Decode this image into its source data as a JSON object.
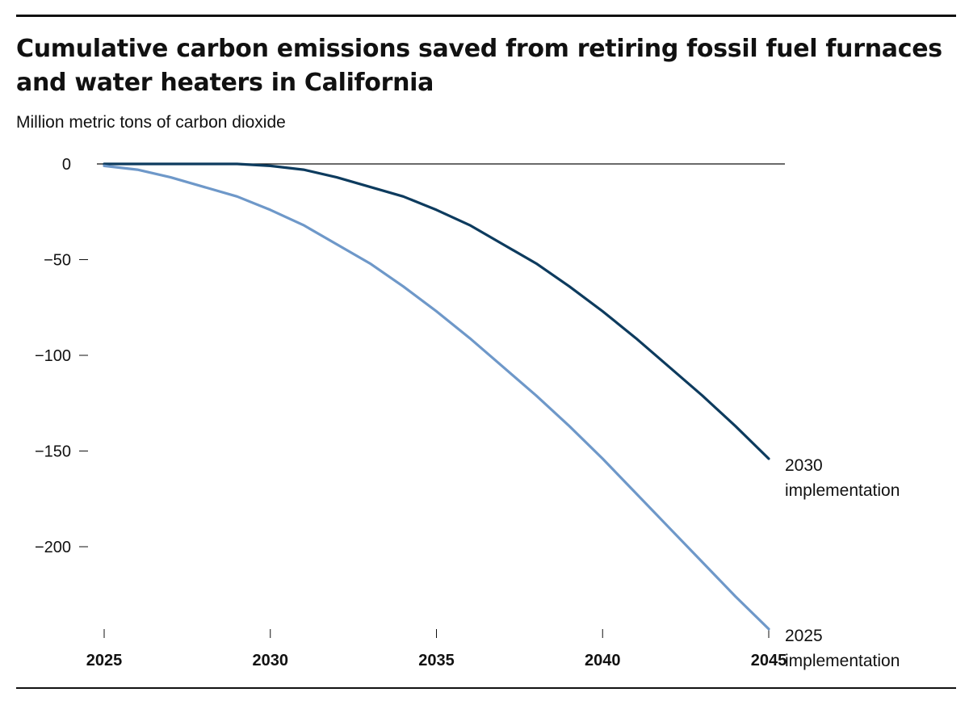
{
  "chart_data": {
    "type": "line",
    "title": "Cumulative carbon emissions saved from retiring fossil fuel furnaces and water heaters in California",
    "subtitle": "Million metric tons of carbon dioxide",
    "x": [
      2025,
      2026,
      2027,
      2028,
      2029,
      2030,
      2031,
      2032,
      2033,
      2034,
      2035,
      2036,
      2037,
      2038,
      2039,
      2040,
      2041,
      2042,
      2043,
      2044,
      2045
    ],
    "xlim": [
      2025,
      2045
    ],
    "ylim": [
      -243,
      0
    ],
    "x_ticks": [
      2025,
      2030,
      2035,
      2040,
      2045
    ],
    "x_tick_labels": [
      "2025",
      "2030",
      "2035",
      "2040",
      "2045"
    ],
    "y_ticks": [
      0,
      -50,
      -100,
      -150,
      -200
    ],
    "y_tick_labels": [
      "0",
      "−50",
      "−100",
      "−150",
      "−200"
    ],
    "grid": false,
    "legend": "none",
    "series": [
      {
        "name": "2030 implementation",
        "label_lines": [
          "2030",
          "implementation"
        ],
        "color": "#0d3b5e",
        "values": [
          0,
          0,
          0,
          0,
          0,
          -1,
          -3,
          -7,
          -12,
          -17,
          -24,
          -32,
          -42,
          -52,
          -64,
          -77,
          -91,
          -106,
          -121,
          -137,
          -154
        ]
      },
      {
        "name": "2025 implementation",
        "label_lines": [
          "2025",
          "implementation"
        ],
        "color": "#6e98c9",
        "values": [
          -1,
          -3,
          -7,
          -12,
          -17,
          -24,
          -32,
          -42,
          -52,
          -64,
          -77,
          -91,
          -106,
          -121,
          -137,
          -154,
          -172,
          -190,
          -208,
          -226,
          -243
        ]
      }
    ]
  }
}
